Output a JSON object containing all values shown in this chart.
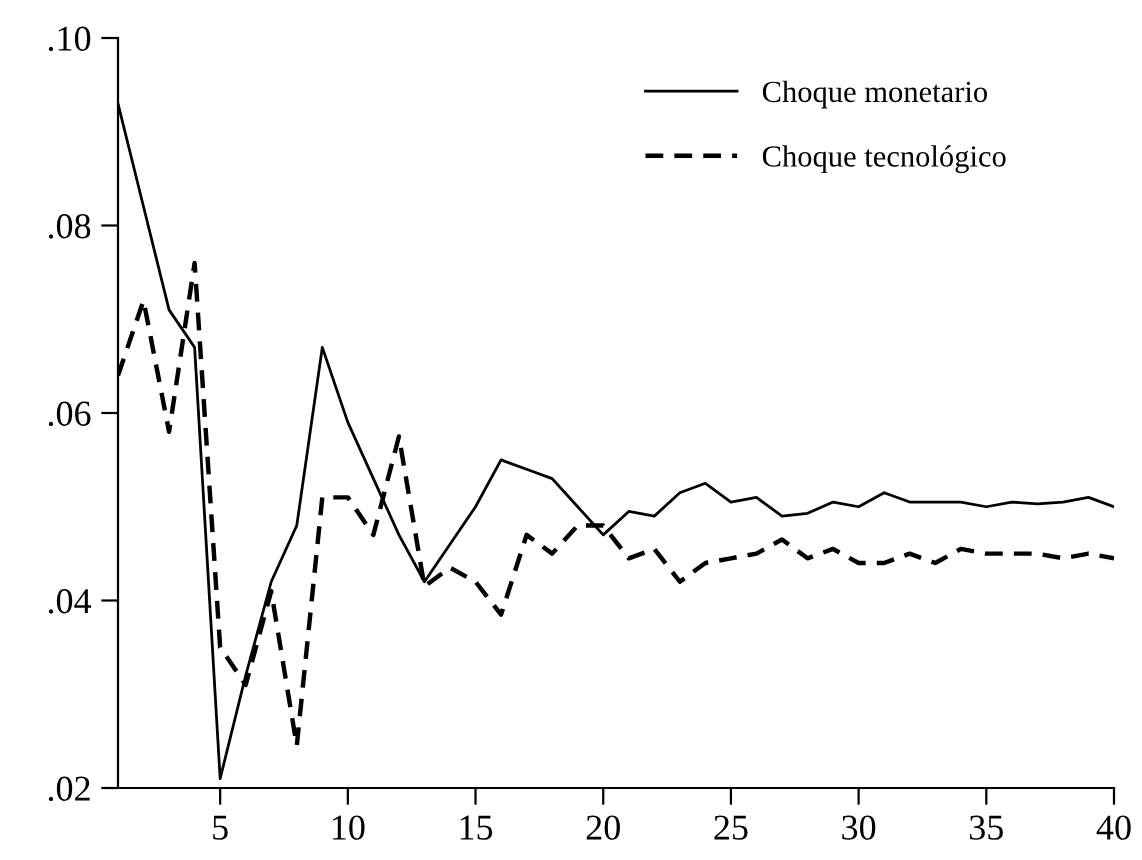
{
  "chart_data": {
    "type": "line",
    "x": [
      1,
      2,
      3,
      4,
      5,
      6,
      7,
      8,
      9,
      10,
      11,
      12,
      13,
      14,
      15,
      16,
      17,
      18,
      19,
      20,
      21,
      22,
      23,
      24,
      25,
      26,
      27,
      28,
      29,
      30,
      31,
      32,
      33,
      34,
      35,
      36,
      37,
      38,
      39,
      40
    ],
    "series": [
      {
        "name": "Choque monetario",
        "color": "#000000",
        "line_style": "solid",
        "values": [
          0.093,
          0.082,
          0.071,
          0.067,
          0.021,
          0.032,
          0.042,
          0.048,
          0.067,
          0.059,
          0.053,
          0.047,
          0.042,
          0.046,
          0.05,
          0.055,
          0.054,
          0.053,
          0.05,
          0.047,
          0.0495,
          0.049,
          0.0515,
          0.0525,
          0.0505,
          0.051,
          0.049,
          0.0493,
          0.0505,
          0.05,
          0.0515,
          0.0505,
          0.0505,
          0.0505,
          0.05,
          0.0505,
          0.0503,
          0.0505,
          0.051,
          0.05
        ]
      },
      {
        "name": "Choque tecnológico",
        "color": "#000000",
        "line_style": "dashed",
        "values": [
          0.064,
          0.072,
          0.058,
          0.076,
          0.035,
          0.031,
          0.041,
          0.0245,
          0.051,
          0.051,
          0.047,
          0.0575,
          0.0415,
          0.0435,
          0.042,
          0.0385,
          0.047,
          0.045,
          0.048,
          0.048,
          0.0445,
          0.0455,
          0.042,
          0.044,
          0.0445,
          0.045,
          0.0465,
          0.0445,
          0.0455,
          0.044,
          0.044,
          0.045,
          0.044,
          0.0455,
          0.045,
          0.045,
          0.045,
          0.0445,
          0.045,
          0.0445
        ]
      }
    ],
    "xlim": [
      1,
      40
    ],
    "xticks": [
      5,
      10,
      15,
      20,
      25,
      30,
      35,
      40
    ],
    "ylim": [
      0.02,
      0.1
    ],
    "yticks": [
      {
        "value": 0.02,
        "label": ".02"
      },
      {
        "value": 0.04,
        "label": ".04"
      },
      {
        "value": 0.06,
        "label": ".06"
      },
      {
        "value": 0.08,
        "label": ".08"
      },
      {
        "value": 0.1,
        "label": ".10"
      }
    ],
    "grid": false,
    "legend": "top right",
    "marker": "none"
  }
}
